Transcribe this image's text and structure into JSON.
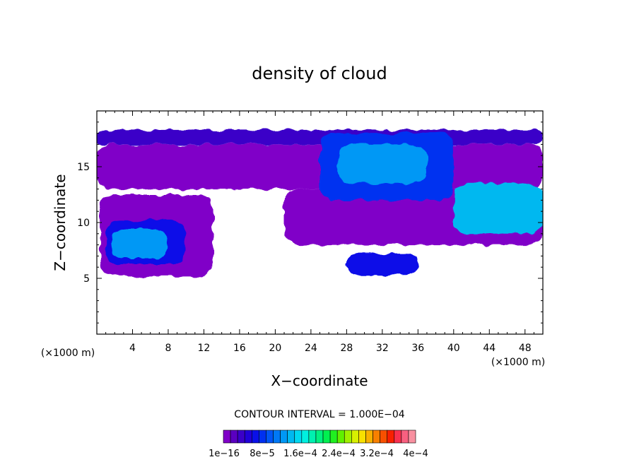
{
  "chart_data": {
    "type": "heatmap",
    "title": "density of cloud",
    "xlabel": "X−coordinate",
    "ylabel": "Z−coordinate",
    "x_unit_left": "(×1000 m)",
    "x_unit_right": "(×1000 m)",
    "xlim": [
      0,
      50
    ],
    "ylim": [
      0,
      20
    ],
    "x_ticks": [
      "4",
      "8",
      "12",
      "16",
      "20",
      "24",
      "28",
      "32",
      "36",
      "40",
      "44",
      "48"
    ],
    "x_tick_values": [
      4,
      8,
      12,
      16,
      20,
      24,
      28,
      32,
      36,
      40,
      44,
      48
    ],
    "y_ticks": [
      "5",
      "10",
      "15"
    ],
    "y_tick_values": [
      5,
      10,
      15
    ],
    "contour_interval_text": "CONTOUR INTERVAL = 1.000E−04",
    "colorbar_labels": [
      "1e−16",
      "8e−5",
      "1.6e−4",
      "2.4e−4",
      "3.2e−4",
      "4e−4"
    ],
    "colorbar_range": [
      1e-16,
      0.0004
    ],
    "colorbar_colors": [
      "#8000c8",
      "#5a00c0",
      "#3a00c8",
      "#2000d8",
      "#0a10e8",
      "#0030f0",
      "#0055f5",
      "#0078f5",
      "#0098f5",
      "#00b8f0",
      "#00d8f0",
      "#00f0e0",
      "#00f0b0",
      "#00f080",
      "#00f050",
      "#20f020",
      "#60f000",
      "#a0f000",
      "#d8f000",
      "#f8e000",
      "#f8b000",
      "#f88000",
      "#f85000",
      "#f82000",
      "#f83050",
      "#f86080",
      "#f890a0"
    ],
    "regions": [
      {
        "x": [
          0,
          50
        ],
        "z": [
          17.0,
          18.3
        ],
        "value": 3e-05
      },
      {
        "x": [
          0,
          50
        ],
        "z": [
          13.0,
          17.0
        ],
        "value": 1e-05
      },
      {
        "x": [
          0.4,
          13
        ],
        "z": [
          5.2,
          12.5
        ],
        "value": 1e-05
      },
      {
        "x": [
          1,
          10
        ],
        "z": [
          6.3,
          10.2
        ],
        "value": 6e-05
      },
      {
        "x": [
          1.5,
          8
        ],
        "z": [
          6.8,
          9.4
        ],
        "value": 0.00012
      },
      {
        "x": [
          21,
          50
        ],
        "z": [
          8,
          13
        ],
        "value": 1e-05
      },
      {
        "x": [
          28,
          36
        ],
        "z": [
          5.3,
          7.3
        ],
        "value": 6e-05
      },
      {
        "x": [
          25,
          40
        ],
        "z": [
          12,
          18
        ],
        "value": 8e-05
      },
      {
        "x": [
          27,
          37
        ],
        "z": [
          13.5,
          17
        ],
        "value": 0.00013
      },
      {
        "x": [
          40,
          50
        ],
        "z": [
          9,
          13.5
        ],
        "value": 0.00014
      }
    ]
  }
}
